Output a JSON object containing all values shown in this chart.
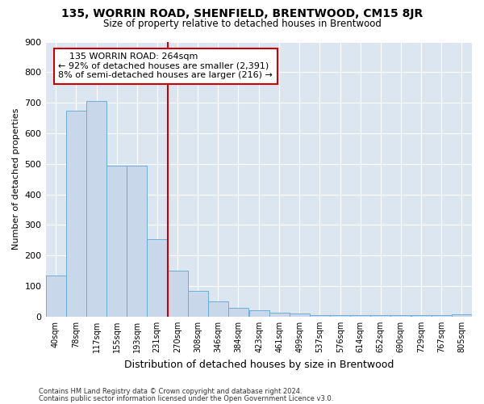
{
  "title": "135, WORRIN ROAD, SHENFIELD, BRENTWOOD, CM15 8JR",
  "subtitle": "Size of property relative to detached houses in Brentwood",
  "xlabel": "Distribution of detached houses by size in Brentwood",
  "ylabel": "Number of detached properties",
  "footer_line1": "Contains HM Land Registry data © Crown copyright and database right 2024.",
  "footer_line2": "Contains public sector information licensed under the Open Government Licence v3.0.",
  "annotation_line1": "    135 WORRIN ROAD: 264sqm",
  "annotation_line2": "← 92% of detached houses are smaller (2,391)",
  "annotation_line3": "8% of semi-detached houses are larger (216) →",
  "bar_edges": [
    40,
    78,
    117,
    155,
    193,
    231,
    270,
    308,
    346,
    384,
    423,
    461,
    499,
    537,
    576,
    614,
    652,
    690,
    729,
    767,
    805
  ],
  "bar_heights": [
    135,
    675,
    705,
    493,
    493,
    253,
    150,
    85,
    50,
    30,
    20,
    12,
    10,
    5,
    5,
    5,
    5,
    5,
    5,
    5,
    8
  ],
  "bar_color": "#c8d8ea",
  "bar_edge_color": "#6aaed6",
  "ref_line_color": "#cc0000",
  "ref_line_x": 270,
  "annotation_box_color": "#ffffff",
  "annotation_box_edge": "#cc0000",
  "plot_bg_color": "#dce6f1",
  "ylim": [
    0,
    900
  ],
  "yticks": [
    0,
    100,
    200,
    300,
    400,
    500,
    600,
    700,
    800,
    900
  ],
  "title_fontsize": 10,
  "subtitle_fontsize": 8.5,
  "xlabel_fontsize": 9,
  "ylabel_fontsize": 8,
  "tick_fontsize": 7,
  "footer_fontsize": 6,
  "annot_fontsize": 8
}
